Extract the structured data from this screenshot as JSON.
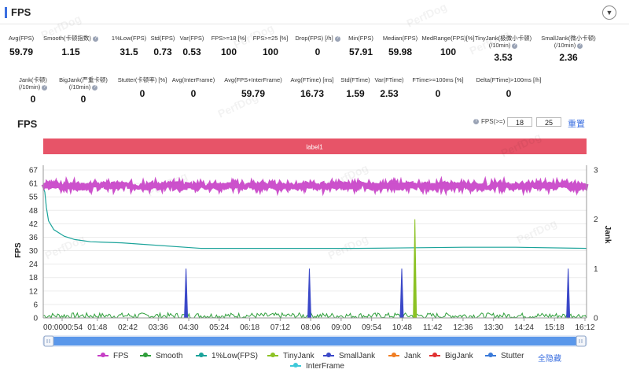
{
  "header": {
    "title": "FPS",
    "collapse_icon": "chevron-down-icon"
  },
  "stats_row1": [
    {
      "label": "Avg(FPS)",
      "value": "59.79"
    },
    {
      "label": "Smooth(卡顿指数)",
      "value": "1.15",
      "help": true
    },
    {
      "label": "1%Low(FPS)",
      "value": "31.5"
    },
    {
      "label": "Std(FPS)",
      "value": "0.73"
    },
    {
      "label": "Var(FPS)",
      "value": "0.53"
    },
    {
      "label": "FPS>=18 [%]",
      "value": "100"
    },
    {
      "label": "FPS>=25 [%]",
      "value": "100"
    },
    {
      "label": "Drop(FPS) [/h]",
      "value": "0",
      "help": true
    },
    {
      "label": "Min(FPS)",
      "value": "57.91"
    },
    {
      "label": "Median(FPS)",
      "value": "59.98"
    },
    {
      "label": "MedRange(FPS)[%]",
      "value": "100"
    },
    {
      "label": "TinyJank(极微小卡顿)\n(/10min)",
      "value": "3.53",
      "help": true
    },
    {
      "label": "SmallJank(微小卡顿)\n(/10min)",
      "value": "2.36",
      "help": true
    }
  ],
  "stats_row2": [
    {
      "label": "Jank(卡顿)\n(/10min)",
      "value": "0",
      "help": true
    },
    {
      "label": "BigJank(严重卡顿)\n(/10min)",
      "value": "0",
      "help": true
    },
    {
      "label": "Stutter(卡顿率) [%]",
      "value": "0"
    },
    {
      "label": "Avg(InterFrame)",
      "value": "0"
    },
    {
      "label": "Avg(FPS+InterFrame)",
      "value": "59.79"
    },
    {
      "label": "Avg(FTime) [ms]",
      "value": "16.73"
    },
    {
      "label": "Std(FTime)",
      "value": "1.59"
    },
    {
      "label": "Var(FTime)",
      "value": "2.53"
    },
    {
      "label": "FTime>=100ms [%]",
      "value": "0"
    },
    {
      "label": "Delta(FTime)>100ms [/h]",
      "value": "0"
    }
  ],
  "chart_header": {
    "title": "FPS",
    "threshold_label": "FPS(>=)",
    "threshold_1": "18",
    "threshold_2": "25",
    "reset_label": "重置"
  },
  "label_band": "label1",
  "watermark": "PerfDog",
  "colors": {
    "accent": "#3b6fe0",
    "band": "#e75468",
    "fps": "#c63ec6",
    "smooth": "#2e9e3a",
    "low1": "#1aa39a",
    "tinyjank": "#8cc224",
    "smalljank": "#3b48c8",
    "jank": "#f07d22",
    "bigjank": "#e03030",
    "stutter": "#3a7ad9",
    "interframe": "#3ec8d9"
  },
  "chart_data": {
    "type": "line",
    "x_ticks": [
      "00:0000:54",
      "01:48",
      "02:42",
      "03:36",
      "04:30",
      "05:24",
      "06:18",
      "07:12",
      "08:06",
      "09:00",
      "09:54",
      "10:48",
      "11:42",
      "12:36",
      "13:30",
      "14:24",
      "15:18",
      "16:12"
    ],
    "x_range_seconds": [
      0,
      1035
    ],
    "ylabel_left": "FPS",
    "ylabel_right": "Jank",
    "y_left_ticks": [
      "67",
      "61",
      "55",
      "48",
      "42",
      "36",
      "30",
      "24",
      "18",
      "12",
      "6",
      "0"
    ],
    "ylim_left": [
      0,
      67
    ],
    "y_right_ticks": [
      "3",
      "2",
      "1",
      "0"
    ],
    "ylim_right": [
      0,
      3
    ],
    "series": [
      {
        "name": "FPS",
        "axis": "left",
        "level": 59.8,
        "jitter": 1.2
      },
      {
        "name": "Smooth",
        "axis": "left",
        "level": 1.0,
        "jitter": 1.3
      },
      {
        "name": "1%Low(FPS)",
        "axis": "left",
        "points": [
          [
            0,
            59
          ],
          [
            3,
            57
          ],
          [
            6,
            50
          ],
          [
            10,
            44
          ],
          [
            20,
            40
          ],
          [
            40,
            37
          ],
          [
            60,
            35.5
          ],
          [
            90,
            34.5
          ],
          [
            150,
            34
          ],
          [
            300,
            31.5
          ],
          [
            600,
            31.5
          ],
          [
            800,
            32
          ],
          [
            900,
            32
          ],
          [
            1035,
            31.5
          ]
        ]
      },
      {
        "name": "TinyJank",
        "axis": "right",
        "spikes": [
          [
            708,
            2.0
          ]
        ]
      },
      {
        "name": "SmallJank",
        "axis": "right",
        "spikes": [
          [
            272,
            1.0
          ],
          [
            507,
            1.0
          ],
          [
            683,
            1.0
          ],
          [
            1000,
            1.0
          ]
        ]
      },
      {
        "name": "Jank",
        "axis": "right",
        "spikes": []
      },
      {
        "name": "BigJank",
        "axis": "right",
        "spikes": []
      },
      {
        "name": "Stutter",
        "axis": "right",
        "spikes": []
      },
      {
        "name": "InterFrame",
        "axis": "left",
        "points": []
      }
    ],
    "legend": [
      "FPS",
      "Smooth",
      "1%Low(FPS)",
      "TinyJank",
      "SmallJank",
      "Jank",
      "BigJank",
      "Stutter",
      "InterFrame"
    ],
    "legend_position": "bottom",
    "hide_all_label": "全隐藏",
    "grid": true
  }
}
